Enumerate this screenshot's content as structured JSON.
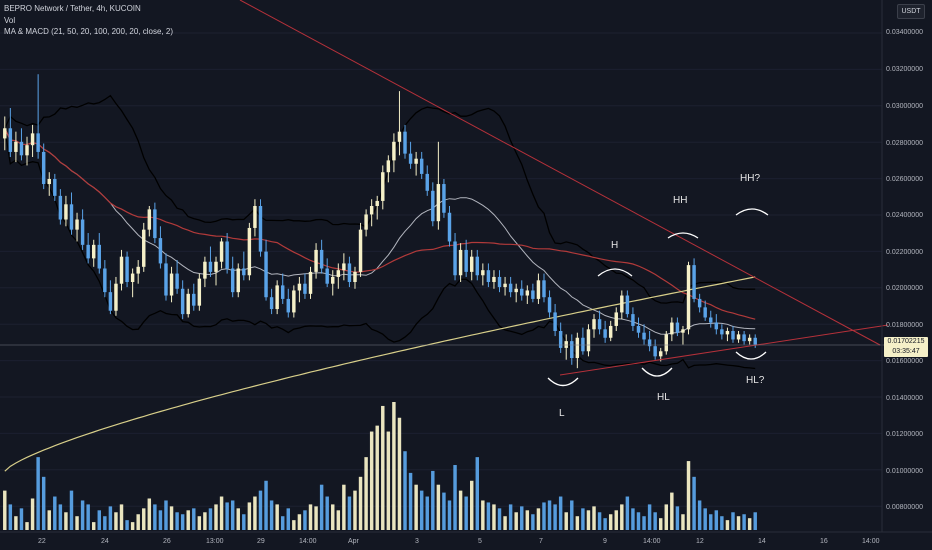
{
  "header": {
    "title": "BEPRO Network / Tether, 4h, KUCOIN",
    "vol": "Vol",
    "indicator": "MA & MACD (21, 50, 20, 100, 200, 20, close, 2)"
  },
  "currency_button": "USDT",
  "price_tag": {
    "price": "0.01702215",
    "countdown": "03:35:47"
  },
  "chart_data": {
    "type": "candlestick",
    "symbol": "BEPRO/USDT",
    "interval": "4h",
    "exchange": "KUCOIN",
    "y_ticks": [
      "0.03400000",
      "0.03200000",
      "0.03000000",
      "0.02800000",
      "0.02600000",
      "0.02400000",
      "0.02200000",
      "0.02000000",
      "0.01800000",
      "0.01600000",
      "0.01400000",
      "0.01200000",
      "0.01000000",
      "0.00800000"
    ],
    "x_ticks": [
      "22",
      "24",
      "26",
      "13:00",
      "29",
      "14:00",
      "Apr",
      "3",
      "5",
      "7",
      "9",
      "14:00",
      "12",
      "14",
      "16",
      "14:00"
    ],
    "ylim": [
      0.0075,
      0.0355
    ],
    "annotations": [
      "L",
      "H",
      "HL",
      "HH",
      "HH?",
      "HL?"
    ],
    "colors": {
      "up": "#f5f0c8",
      "down": "#5aa3e8",
      "ma_fast": "#b2b5be",
      "ma_mid": "#b23a3a",
      "ma_slow": "#d8cf8a",
      "bands": "#000000",
      "trendline": "#b5313a"
    },
    "last_price": 0.01702215,
    "ohlc_note": "approximate 4h candles read from the chart",
    "candles": [
      {
        "o": 0.0292,
        "h": 0.0305,
        "l": 0.0285,
        "c": 0.0298,
        "v": 0.0095
      },
      {
        "o": 0.0298,
        "h": 0.031,
        "l": 0.0281,
        "c": 0.0284,
        "v": 0.0088
      },
      {
        "o": 0.0284,
        "h": 0.0296,
        "l": 0.0278,
        "c": 0.029,
        "v": 0.0082
      },
      {
        "o": 0.029,
        "h": 0.0298,
        "l": 0.0279,
        "c": 0.0282,
        "v": 0.0086
      },
      {
        "o": 0.0282,
        "h": 0.0293,
        "l": 0.0276,
        "c": 0.0288,
        "v": 0.0079
      },
      {
        "o": 0.0288,
        "h": 0.03,
        "l": 0.0281,
        "c": 0.0295,
        "v": 0.0091
      },
      {
        "o": 0.0295,
        "h": 0.033,
        "l": 0.028,
        "c": 0.0284,
        "v": 0.0112
      },
      {
        "o": 0.0284,
        "h": 0.0289,
        "l": 0.0262,
        "c": 0.0265,
        "v": 0.0102
      },
      {
        "o": 0.0265,
        "h": 0.0272,
        "l": 0.0258,
        "c": 0.0268,
        "v": 0.0085
      },
      {
        "o": 0.0268,
        "h": 0.0271,
        "l": 0.0255,
        "c": 0.0258,
        "v": 0.0092
      },
      {
        "o": 0.0258,
        "h": 0.0262,
        "l": 0.0241,
        "c": 0.0244,
        "v": 0.0088
      },
      {
        "o": 0.0244,
        "h": 0.0258,
        "l": 0.024,
        "c": 0.0253,
        "v": 0.0084
      },
      {
        "o": 0.0253,
        "h": 0.026,
        "l": 0.0235,
        "c": 0.0238,
        "v": 0.0095
      },
      {
        "o": 0.0238,
        "h": 0.0248,
        "l": 0.0231,
        "c": 0.0244,
        "v": 0.0082
      },
      {
        "o": 0.0244,
        "h": 0.025,
        "l": 0.0226,
        "c": 0.0229,
        "v": 0.009
      },
      {
        "o": 0.0229,
        "h": 0.0236,
        "l": 0.0218,
        "c": 0.0221,
        "v": 0.0088
      },
      {
        "o": 0.0221,
        "h": 0.0232,
        "l": 0.0216,
        "c": 0.0229,
        "v": 0.0079
      },
      {
        "o": 0.0229,
        "h": 0.0236,
        "l": 0.0212,
        "c": 0.0215,
        "v": 0.0085
      },
      {
        "o": 0.0215,
        "h": 0.022,
        "l": 0.0198,
        "c": 0.0201,
        "v": 0.0082
      },
      {
        "o": 0.0201,
        "h": 0.0208,
        "l": 0.0188,
        "c": 0.019,
        "v": 0.0087
      },
      {
        "o": 0.019,
        "h": 0.021,
        "l": 0.0187,
        "c": 0.0206,
        "v": 0.0084
      },
      {
        "o": 0.0206,
        "h": 0.0226,
        "l": 0.0202,
        "c": 0.0222,
        "v": 0.0088
      },
      {
        "o": 0.0222,
        "h": 0.0225,
        "l": 0.0204,
        "c": 0.0207,
        "v": 0.008
      },
      {
        "o": 0.0207,
        "h": 0.0215,
        "l": 0.0198,
        "c": 0.0212,
        "v": 0.0079
      },
      {
        "o": 0.0212,
        "h": 0.022,
        "l": 0.0206,
        "c": 0.0216,
        "v": 0.0083
      },
      {
        "o": 0.0216,
        "h": 0.0242,
        "l": 0.0213,
        "c": 0.0238,
        "v": 0.0086
      },
      {
        "o": 0.0238,
        "h": 0.0252,
        "l": 0.0234,
        "c": 0.025,
        "v": 0.0091
      },
      {
        "o": 0.025,
        "h": 0.0254,
        "l": 0.023,
        "c": 0.0233,
        "v": 0.0088
      },
      {
        "o": 0.0233,
        "h": 0.024,
        "l": 0.0215,
        "c": 0.0218,
        "v": 0.0085
      },
      {
        "o": 0.0218,
        "h": 0.0224,
        "l": 0.0196,
        "c": 0.0199,
        "v": 0.009
      },
      {
        "o": 0.0199,
        "h": 0.0216,
        "l": 0.0195,
        "c": 0.0212,
        "v": 0.0087
      },
      {
        "o": 0.0212,
        "h": 0.022,
        "l": 0.02,
        "c": 0.0203,
        "v": 0.0084
      },
      {
        "o": 0.0203,
        "h": 0.0208,
        "l": 0.0185,
        "c": 0.0188,
        "v": 0.0083
      },
      {
        "o": 0.0188,
        "h": 0.0203,
        "l": 0.0186,
        "c": 0.02,
        "v": 0.0085
      },
      {
        "o": 0.02,
        "h": 0.0206,
        "l": 0.019,
        "c": 0.0193,
        "v": 0.0086
      },
      {
        "o": 0.0193,
        "h": 0.0212,
        "l": 0.019,
        "c": 0.0209,
        "v": 0.0082
      },
      {
        "o": 0.0209,
        "h": 0.0222,
        "l": 0.0204,
        "c": 0.0219,
        "v": 0.0084
      },
      {
        "o": 0.0219,
        "h": 0.0228,
        "l": 0.021,
        "c": 0.0213,
        "v": 0.0086
      },
      {
        "o": 0.0213,
        "h": 0.0222,
        "l": 0.0205,
        "c": 0.0219,
        "v": 0.0088
      },
      {
        "o": 0.0219,
        "h": 0.0233,
        "l": 0.0215,
        "c": 0.0231,
        "v": 0.0092
      },
      {
        "o": 0.0231,
        "h": 0.0236,
        "l": 0.0212,
        "c": 0.0215,
        "v": 0.0089
      },
      {
        "o": 0.0215,
        "h": 0.0222,
        "l": 0.0198,
        "c": 0.0201,
        "v": 0.009
      },
      {
        "o": 0.0201,
        "h": 0.0218,
        "l": 0.0198,
        "c": 0.0215,
        "v": 0.0086
      },
      {
        "o": 0.0215,
        "h": 0.0225,
        "l": 0.0208,
        "c": 0.0211,
        "v": 0.0083
      },
      {
        "o": 0.0211,
        "h": 0.0242,
        "l": 0.0208,
        "c": 0.0239,
        "v": 0.0089
      },
      {
        "o": 0.0239,
        "h": 0.0256,
        "l": 0.0234,
        "c": 0.0252,
        "v": 0.0092
      },
      {
        "o": 0.0252,
        "h": 0.0256,
        "l": 0.0222,
        "c": 0.0225,
        "v": 0.0095
      },
      {
        "o": 0.0225,
        "h": 0.0232,
        "l": 0.0196,
        "c": 0.0198,
        "v": 0.01
      },
      {
        "o": 0.0198,
        "h": 0.0203,
        "l": 0.0188,
        "c": 0.0191,
        "v": 0.009
      },
      {
        "o": 0.0191,
        "h": 0.0208,
        "l": 0.0188,
        "c": 0.0205,
        "v": 0.0088
      },
      {
        "o": 0.0205,
        "h": 0.0212,
        "l": 0.0194,
        "c": 0.0197,
        "v": 0.0082
      },
      {
        "o": 0.0197,
        "h": 0.0203,
        "l": 0.0186,
        "c": 0.0189,
        "v": 0.0086
      },
      {
        "o": 0.0189,
        "h": 0.0205,
        "l": 0.0186,
        "c": 0.0202,
        "v": 0.008
      },
      {
        "o": 0.0202,
        "h": 0.021,
        "l": 0.0195,
        "c": 0.0206,
        "v": 0.0083
      },
      {
        "o": 0.0206,
        "h": 0.0212,
        "l": 0.0197,
        "c": 0.02,
        "v": 0.0085
      },
      {
        "o": 0.02,
        "h": 0.0216,
        "l": 0.0197,
        "c": 0.0213,
        "v": 0.0088
      },
      {
        "o": 0.0213,
        "h": 0.023,
        "l": 0.0209,
        "c": 0.0226,
        "v": 0.0087
      },
      {
        "o": 0.0226,
        "h": 0.0232,
        "l": 0.0212,
        "c": 0.0215,
        "v": 0.0098
      },
      {
        "o": 0.0215,
        "h": 0.0221,
        "l": 0.0204,
        "c": 0.0206,
        "v": 0.0092
      },
      {
        "o": 0.0206,
        "h": 0.0214,
        "l": 0.0199,
        "c": 0.021,
        "v": 0.0088
      },
      {
        "o": 0.021,
        "h": 0.0218,
        "l": 0.0203,
        "c": 0.0214,
        "v": 0.0085
      },
      {
        "o": 0.0214,
        "h": 0.0224,
        "l": 0.0208,
        "c": 0.0218,
        "v": 0.0098
      },
      {
        "o": 0.0218,
        "h": 0.0222,
        "l": 0.0204,
        "c": 0.0207,
        "v": 0.0092
      },
      {
        "o": 0.0207,
        "h": 0.0216,
        "l": 0.0203,
        "c": 0.0213,
        "v": 0.0095
      },
      {
        "o": 0.0213,
        "h": 0.0242,
        "l": 0.021,
        "c": 0.0238,
        "v": 0.0102
      },
      {
        "o": 0.0238,
        "h": 0.025,
        "l": 0.0234,
        "c": 0.0247,
        "v": 0.0112
      },
      {
        "o": 0.0247,
        "h": 0.0256,
        "l": 0.024,
        "c": 0.0252,
        "v": 0.0125
      },
      {
        "o": 0.0252,
        "h": 0.0258,
        "l": 0.0244,
        "c": 0.0255,
        "v": 0.0128
      },
      {
        "o": 0.0255,
        "h": 0.0276,
        "l": 0.025,
        "c": 0.0272,
        "v": 0.0138
      },
      {
        "o": 0.0272,
        "h": 0.0282,
        "l": 0.0266,
        "c": 0.0279,
        "v": 0.0125
      },
      {
        "o": 0.0279,
        "h": 0.0295,
        "l": 0.0272,
        "c": 0.029,
        "v": 0.014
      },
      {
        "o": 0.029,
        "h": 0.032,
        "l": 0.0282,
        "c": 0.0296,
        "v": 0.0132
      },
      {
        "o": 0.0296,
        "h": 0.03,
        "l": 0.028,
        "c": 0.0283,
        "v": 0.0115
      },
      {
        "o": 0.0283,
        "h": 0.029,
        "l": 0.0274,
        "c": 0.0277,
        "v": 0.0104
      },
      {
        "o": 0.0277,
        "h": 0.0284,
        "l": 0.027,
        "c": 0.028,
        "v": 0.0098
      },
      {
        "o": 0.028,
        "h": 0.0284,
        "l": 0.0268,
        "c": 0.0271,
        "v": 0.0095
      },
      {
        "o": 0.0271,
        "h": 0.0276,
        "l": 0.0258,
        "c": 0.0261,
        "v": 0.0092
      },
      {
        "o": 0.0261,
        "h": 0.0266,
        "l": 0.024,
        "c": 0.0243,
        "v": 0.0105
      },
      {
        "o": 0.0243,
        "h": 0.029,
        "l": 0.0238,
        "c": 0.0265,
        "v": 0.0098
      },
      {
        "o": 0.0265,
        "h": 0.0268,
        "l": 0.0245,
        "c": 0.0248,
        "v": 0.0094
      },
      {
        "o": 0.0248,
        "h": 0.0252,
        "l": 0.0228,
        "c": 0.0231,
        "v": 0.009
      },
      {
        "o": 0.0231,
        "h": 0.0236,
        "l": 0.0208,
        "c": 0.0211,
        "v": 0.0108
      },
      {
        "o": 0.0211,
        "h": 0.023,
        "l": 0.0207,
        "c": 0.0226,
        "v": 0.0095
      },
      {
        "o": 0.0226,
        "h": 0.0232,
        "l": 0.021,
        "c": 0.0213,
        "v": 0.0092
      },
      {
        "o": 0.0213,
        "h": 0.0226,
        "l": 0.0208,
        "c": 0.0222,
        "v": 0.01
      },
      {
        "o": 0.0222,
        "h": 0.0226,
        "l": 0.0208,
        "c": 0.0211,
        "v": 0.0112
      },
      {
        "o": 0.0211,
        "h": 0.0218,
        "l": 0.0205,
        "c": 0.0214,
        "v": 0.009
      },
      {
        "o": 0.0214,
        "h": 0.0218,
        "l": 0.0204,
        "c": 0.0207,
        "v": 0.0089
      },
      {
        "o": 0.0207,
        "h": 0.0214,
        "l": 0.0203,
        "c": 0.021,
        "v": 0.0088
      },
      {
        "o": 0.021,
        "h": 0.0214,
        "l": 0.0201,
        "c": 0.0204,
        "v": 0.0086
      },
      {
        "o": 0.0204,
        "h": 0.021,
        "l": 0.0199,
        "c": 0.0206,
        "v": 0.0082
      },
      {
        "o": 0.0206,
        "h": 0.021,
        "l": 0.0198,
        "c": 0.0201,
        "v": 0.0088
      },
      {
        "o": 0.0201,
        "h": 0.0206,
        "l": 0.0195,
        "c": 0.0203,
        "v": 0.0084
      },
      {
        "o": 0.0203,
        "h": 0.0208,
        "l": 0.0196,
        "c": 0.0199,
        "v": 0.0087
      },
      {
        "o": 0.0199,
        "h": 0.0205,
        "l": 0.0194,
        "c": 0.0202,
        "v": 0.0085
      },
      {
        "o": 0.0202,
        "h": 0.0206,
        "l": 0.0195,
        "c": 0.0197,
        "v": 0.0083
      },
      {
        "o": 0.0197,
        "h": 0.0212,
        "l": 0.0194,
        "c": 0.0208,
        "v": 0.0086
      },
      {
        "o": 0.0208,
        "h": 0.0212,
        "l": 0.0195,
        "c": 0.0198,
        "v": 0.0089
      },
      {
        "o": 0.0198,
        "h": 0.0202,
        "l": 0.0186,
        "c": 0.0189,
        "v": 0.009
      },
      {
        "o": 0.0189,
        "h": 0.0194,
        "l": 0.0175,
        "c": 0.0178,
        "v": 0.0088
      },
      {
        "o": 0.0178,
        "h": 0.0183,
        "l": 0.0165,
        "c": 0.0168,
        "v": 0.0092
      },
      {
        "o": 0.0168,
        "h": 0.0176,
        "l": 0.0161,
        "c": 0.0172,
        "v": 0.0084
      },
      {
        "o": 0.0172,
        "h": 0.0176,
        "l": 0.0158,
        "c": 0.0162,
        "v": 0.009
      },
      {
        "o": 0.0162,
        "h": 0.0177,
        "l": 0.0156,
        "c": 0.0174,
        "v": 0.0082
      },
      {
        "o": 0.0174,
        "h": 0.018,
        "l": 0.0164,
        "c": 0.0166,
        "v": 0.0086
      },
      {
        "o": 0.0166,
        "h": 0.0182,
        "l": 0.0163,
        "c": 0.0179,
        "v": 0.0085
      },
      {
        "o": 0.0179,
        "h": 0.0188,
        "l": 0.0174,
        "c": 0.0185,
        "v": 0.0087
      },
      {
        "o": 0.0185,
        "h": 0.019,
        "l": 0.0176,
        "c": 0.0179,
        "v": 0.0084
      },
      {
        "o": 0.0179,
        "h": 0.0184,
        "l": 0.0171,
        "c": 0.0174,
        "v": 0.0081
      },
      {
        "o": 0.0174,
        "h": 0.0184,
        "l": 0.0172,
        "c": 0.0181,
        "v": 0.0083
      },
      {
        "o": 0.0181,
        "h": 0.0192,
        "l": 0.0178,
        "c": 0.0189,
        "v": 0.0085
      },
      {
        "o": 0.0189,
        "h": 0.0202,
        "l": 0.0185,
        "c": 0.0199,
        "v": 0.0088
      },
      {
        "o": 0.0199,
        "h": 0.0202,
        "l": 0.0186,
        "c": 0.0188,
        "v": 0.0092
      },
      {
        "o": 0.0188,
        "h": 0.0192,
        "l": 0.0178,
        "c": 0.0181,
        "v": 0.0086
      },
      {
        "o": 0.0181,
        "h": 0.0186,
        "l": 0.0174,
        "c": 0.0177,
        "v": 0.0084
      },
      {
        "o": 0.0177,
        "h": 0.0182,
        "l": 0.017,
        "c": 0.0173,
        "v": 0.0082
      },
      {
        "o": 0.0173,
        "h": 0.0178,
        "l": 0.0166,
        "c": 0.0169,
        "v": 0.0088
      },
      {
        "o": 0.0169,
        "h": 0.0173,
        "l": 0.0161,
        "c": 0.0163,
        "v": 0.0084
      },
      {
        "o": 0.0163,
        "h": 0.0168,
        "l": 0.016,
        "c": 0.0166,
        "v": 0.0081
      },
      {
        "o": 0.0166,
        "h": 0.0178,
        "l": 0.0164,
        "c": 0.0176,
        "v": 0.0088
      },
      {
        "o": 0.0176,
        "h": 0.0186,
        "l": 0.0172,
        "c": 0.0183,
        "v": 0.0094
      },
      {
        "o": 0.0183,
        "h": 0.0186,
        "l": 0.0175,
        "c": 0.0177,
        "v": 0.0087
      },
      {
        "o": 0.0177,
        "h": 0.0181,
        "l": 0.017,
        "c": 0.0179,
        "v": 0.0083
      },
      {
        "o": 0.0179,
        "h": 0.0219,
        "l": 0.0176,
        "c": 0.0217,
        "v": 0.011
      },
      {
        "o": 0.0217,
        "h": 0.0221,
        "l": 0.0195,
        "c": 0.0197,
        "v": 0.0102
      },
      {
        "o": 0.0197,
        "h": 0.02,
        "l": 0.0189,
        "c": 0.0192,
        "v": 0.009
      },
      {
        "o": 0.0192,
        "h": 0.0196,
        "l": 0.0184,
        "c": 0.0186,
        "v": 0.0086
      },
      {
        "o": 0.0186,
        "h": 0.019,
        "l": 0.018,
        "c": 0.0183,
        "v": 0.0083
      },
      {
        "o": 0.0183,
        "h": 0.0188,
        "l": 0.0176,
        "c": 0.0179,
        "v": 0.0085
      },
      {
        "o": 0.0179,
        "h": 0.0182,
        "l": 0.0173,
        "c": 0.0176,
        "v": 0.0082
      },
      {
        "o": 0.0176,
        "h": 0.018,
        "l": 0.0172,
        "c": 0.0178,
        "v": 0.008
      },
      {
        "o": 0.0178,
        "h": 0.0181,
        "l": 0.0171,
        "c": 0.0173,
        "v": 0.0084
      },
      {
        "o": 0.0173,
        "h": 0.0178,
        "l": 0.0171,
        "c": 0.0176,
        "v": 0.0082
      },
      {
        "o": 0.0176,
        "h": 0.0178,
        "l": 0.017,
        "c": 0.0172,
        "v": 0.0083
      },
      {
        "o": 0.0172,
        "h": 0.0176,
        "l": 0.017,
        "c": 0.0174,
        "v": 0.0081
      },
      {
        "o": 0.0174,
        "h": 0.0176,
        "l": 0.0168,
        "c": 0.017,
        "v": 0.0084
      }
    ]
  }
}
